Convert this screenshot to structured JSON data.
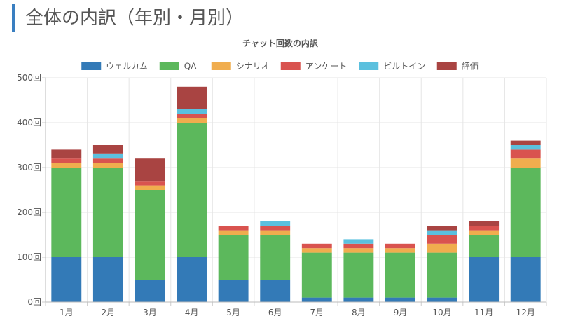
{
  "header": {
    "title": "全体の内訳（年別・月別）"
  },
  "chart_data": {
    "type": "bar",
    "stacked": true,
    "title": "チャット回数の内訳",
    "categories": [
      "1月",
      "2月",
      "3月",
      "4月",
      "5月",
      "6月",
      "7月",
      "8月",
      "9月",
      "10月",
      "11月",
      "12月"
    ],
    "ylim": [
      0,
      500
    ],
    "yticks": [
      "0回",
      "100回",
      "200回",
      "300回",
      "400回",
      "500回"
    ],
    "grid": true,
    "legend_position": "top",
    "series": [
      {
        "name": "ウェルカム",
        "color": "#337ab7",
        "values": [
          100,
          100,
          50,
          100,
          50,
          50,
          10,
          10,
          10,
          10,
          100,
          100
        ]
      },
      {
        "name": "QA",
        "color": "#5cb85c",
        "values": [
          200,
          200,
          200,
          300,
          100,
          100,
          100,
          100,
          100,
          100,
          50,
          200
        ]
      },
      {
        "name": "シナリオ",
        "color": "#f0ad4e",
        "values": [
          10,
          10,
          10,
          10,
          10,
          10,
          10,
          10,
          10,
          20,
          10,
          20
        ]
      },
      {
        "name": "アンケート",
        "color": "#d9534f",
        "values": [
          10,
          10,
          10,
          10,
          10,
          10,
          10,
          10,
          10,
          20,
          10,
          20
        ]
      },
      {
        "name": "ビルトイン",
        "color": "#5bc0de",
        "values": [
          0,
          10,
          0,
          10,
          0,
          10,
          0,
          10,
          0,
          10,
          0,
          10
        ]
      },
      {
        "name": "評価",
        "color": "#a94442",
        "values": [
          20,
          20,
          50,
          50,
          0,
          0,
          0,
          0,
          0,
          10,
          10,
          10
        ]
      }
    ]
  }
}
